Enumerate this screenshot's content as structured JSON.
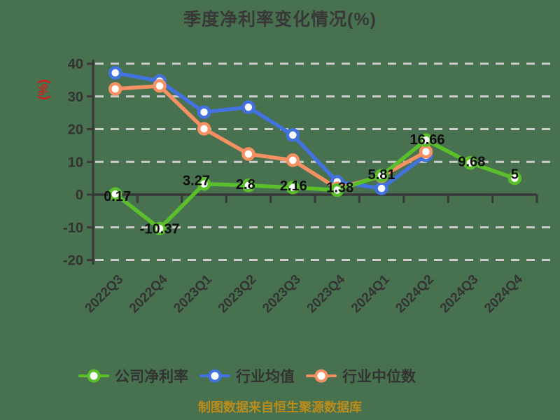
{
  "title": "季度净利率变化情况(%)",
  "y_axis_unit": "(%)",
  "caption": "制图数据来自恒生聚源数据库",
  "colors": {
    "background": "#48714F",
    "grid": "#CDCDCD",
    "axis": "#383838",
    "title_text": "#383838",
    "tick_text": "#333333",
    "data_label": "#0D0D0D",
    "unit_label": "#D2201A",
    "caption_text": "#BA8C1B",
    "marker_fill": "#FFFFFF"
  },
  "chart_data": {
    "type": "line",
    "title": "季度净利率变化情况(%)",
    "ylabel": "(%)",
    "categories": [
      "2022Q3",
      "2022Q4",
      "2023Q1",
      "2023Q2",
      "2023Q3",
      "2023Q4",
      "2024Q1",
      "2024Q2",
      "2024Q3",
      "2024Q4"
    ],
    "series": [
      {
        "name": "公司净利率",
        "color": "#5ABF2A",
        "values": [
          0.17,
          -10.37,
          3.27,
          2.8,
          2.16,
          1.38,
          5.81,
          16.66,
          9.68,
          5
        ],
        "data_labels": [
          "0.17",
          "-10.37",
          "3.27",
          "2.8",
          "2.16",
          "1.38",
          "5.81",
          "16.66",
          "9.68",
          "5"
        ]
      },
      {
        "name": "行业均值",
        "color": "#4272E0",
        "values": [
          37.2,
          34.7,
          25.2,
          26.7,
          18.2,
          3.9,
          1.9,
          12.0,
          null,
          null
        ],
        "data_labels": null
      },
      {
        "name": "行业中位数",
        "color": "#F59062",
        "values": [
          32.3,
          33.2,
          20.1,
          12.4,
          10.5,
          1.9,
          5.6,
          13.1,
          null,
          null
        ],
        "data_labels": null
      }
    ],
    "ylim": [
      -20,
      40
    ],
    "y_ticks": [
      40,
      30,
      20,
      10,
      0,
      -10,
      -20
    ],
    "grid": "horizontal-dashed",
    "x_label_rotation": 45,
    "legend_position": "bottom"
  }
}
